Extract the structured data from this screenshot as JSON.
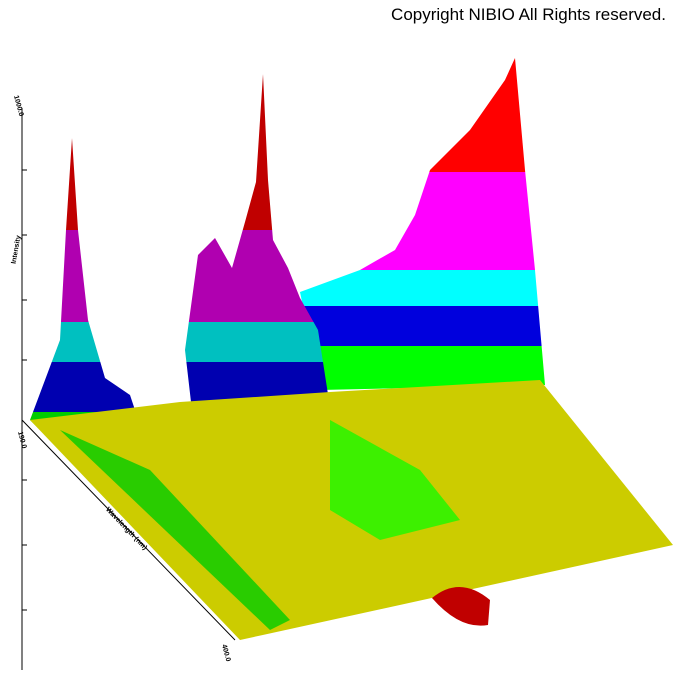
{
  "copyright": "Copyright NIBIO All Rights reserved.",
  "axes": {
    "z_label": "Intensity",
    "z_max": "1000.0",
    "x_label": "Wavelength (nm)",
    "x_start": "190.0",
    "x_end": "400.0"
  }
}
